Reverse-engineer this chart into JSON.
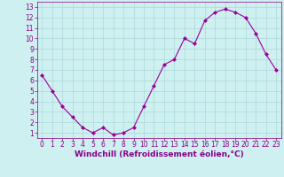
{
  "x": [
    0,
    1,
    2,
    3,
    4,
    5,
    6,
    7,
    8,
    9,
    10,
    11,
    12,
    13,
    14,
    15,
    16,
    17,
    18,
    19,
    20,
    21,
    22,
    23
  ],
  "y": [
    6.5,
    5.0,
    3.5,
    2.5,
    1.5,
    1.0,
    1.5,
    0.8,
    1.0,
    1.5,
    3.5,
    5.5,
    7.5,
    8.0,
    10.0,
    9.5,
    11.7,
    12.5,
    12.8,
    12.5,
    12.0,
    10.5,
    8.5,
    7.0
  ],
  "line_color": "#990099",
  "marker": "D",
  "marker_size": 2,
  "bg_color": "#cff0f0",
  "grid_color": "#aad8d8",
  "xlabel": "Windchill (Refroidissement éolien,°C)",
  "xlim": [
    -0.5,
    23.5
  ],
  "ylim": [
    0.5,
    13.5
  ],
  "xticks": [
    0,
    1,
    2,
    3,
    4,
    5,
    6,
    7,
    8,
    9,
    10,
    11,
    12,
    13,
    14,
    15,
    16,
    17,
    18,
    19,
    20,
    21,
    22,
    23
  ],
  "yticks": [
    1,
    2,
    3,
    4,
    5,
    6,
    7,
    8,
    9,
    10,
    11,
    12,
    13
  ],
  "xlabel_fontsize": 6.5,
  "tick_fontsize": 5.5,
  "label_color": "#880088"
}
